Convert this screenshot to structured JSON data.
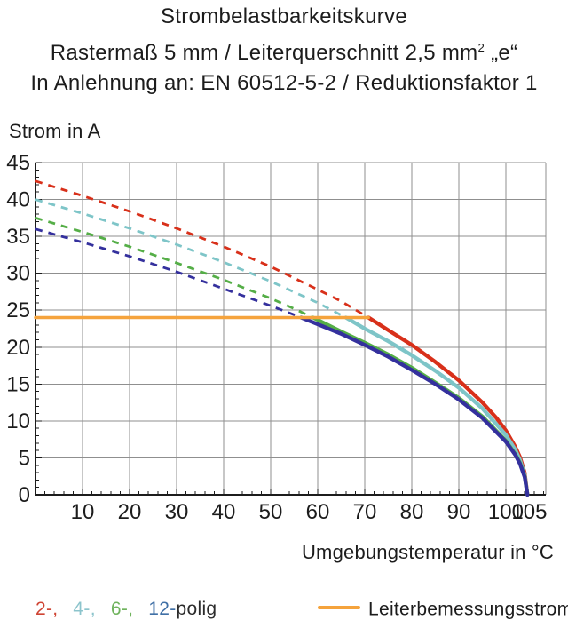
{
  "title": {
    "line1": "Strombelastbarkeitskurve",
    "line2_prefix": "Rastermaß 5 mm / Leiterquerschnitt 2,5 mm",
    "line2_sup": "2",
    "line2_suffix": " „e“",
    "line3": "In Anlehnung an: EN 60512-5-2 / Reduktionsfaktor 1"
  },
  "chart_data": {
    "type": "line",
    "title": "Strombelastbarkeitskurve",
    "xlabel": "Umgebungstemperatur in °C",
    "ylabel": "Strom in A",
    "xlim": [
      0,
      108.5
    ],
    "ylim": [
      0,
      45
    ],
    "x_major_ticks": [
      10,
      20,
      30,
      40,
      50,
      60,
      70,
      80,
      90,
      100,
      105
    ],
    "x_minor_step": 2,
    "x_minor_max": 108,
    "y_major_ticks": [
      0,
      5,
      10,
      15,
      20,
      25,
      30,
      35,
      40,
      45
    ],
    "y_minor_step": 1,
    "x_gridlines": [
      10,
      20,
      30,
      40,
      50,
      60,
      70,
      80,
      90,
      100,
      108.5
    ],
    "y_gridlines": [
      5,
      10,
      15,
      20,
      25,
      30,
      35,
      40,
      45
    ],
    "grid_on": true,
    "grid_color": "#8f8f8f",
    "axis_color": "#1c1c1c",
    "dashed_above_A": 24,
    "rated_current_line": {
      "label": "Leiterbemessungsstrom",
      "value_A": 24,
      "x_from": 0,
      "x_to": 70.8,
      "color": "#f5a33c"
    },
    "series": [
      {
        "name": "2-polig",
        "color": "#d8301a",
        "points": [
          [
            0,
            42.5
          ],
          [
            10,
            40.5
          ],
          [
            20,
            38.4
          ],
          [
            30,
            36.1
          ],
          [
            40,
            33.6
          ],
          [
            50,
            30.9
          ],
          [
            60,
            27.8
          ],
          [
            65,
            26.2
          ],
          [
            70,
            24.3
          ],
          [
            70.8,
            24
          ],
          [
            75,
            22.3
          ],
          [
            80,
            20.3
          ],
          [
            85,
            18.0
          ],
          [
            90,
            15.5
          ],
          [
            95,
            12.5
          ],
          [
            98,
            10.4
          ],
          [
            100,
            8.7
          ],
          [
            102,
            6.5
          ],
          [
            103,
            5.1
          ],
          [
            104,
            3.0
          ],
          [
            104.6,
            0
          ]
        ]
      },
      {
        "name": "4-polig",
        "color": "#7ec5c8",
        "points": [
          [
            0,
            40
          ],
          [
            10,
            38.1
          ],
          [
            20,
            36.1
          ],
          [
            30,
            33.9
          ],
          [
            40,
            31.5
          ],
          [
            50,
            28.9
          ],
          [
            60,
            26.0
          ],
          [
            66,
            24
          ],
          [
            70,
            22.5
          ],
          [
            75,
            20.8
          ],
          [
            80,
            18.9
          ],
          [
            85,
            16.8
          ],
          [
            90,
            14.5
          ],
          [
            95,
            11.7
          ],
          [
            100,
            8.1
          ],
          [
            102,
            6.1
          ],
          [
            103,
            4.7
          ],
          [
            104,
            2.7
          ],
          [
            104.6,
            0
          ]
        ]
      },
      {
        "name": "6-polig",
        "color": "#55ae47",
        "points": [
          [
            0,
            37.5
          ],
          [
            10,
            35.6
          ],
          [
            20,
            33.6
          ],
          [
            30,
            31.4
          ],
          [
            40,
            29.1
          ],
          [
            50,
            26.6
          ],
          [
            55,
            25.2
          ],
          [
            59,
            24
          ],
          [
            65,
            22.1
          ],
          [
            70,
            20.6
          ],
          [
            75,
            19.0
          ],
          [
            80,
            17.2
          ],
          [
            85,
            15.2
          ],
          [
            90,
            13.1
          ],
          [
            95,
            10.6
          ],
          [
            100,
            7.3
          ],
          [
            102,
            5.5
          ],
          [
            103,
            4.3
          ],
          [
            104,
            2.5
          ],
          [
            104.6,
            0
          ]
        ]
      },
      {
        "name": "12-polig",
        "color": "#34309d",
        "points": [
          [
            0,
            36
          ],
          [
            10,
            34.2
          ],
          [
            20,
            32.3
          ],
          [
            30,
            30.2
          ],
          [
            40,
            27.9
          ],
          [
            50,
            25.6
          ],
          [
            56.5,
            24
          ],
          [
            60,
            23.1
          ],
          [
            65,
            21.8
          ],
          [
            70,
            20.3
          ],
          [
            75,
            18.7
          ],
          [
            80,
            16.9
          ],
          [
            85,
            15.0
          ],
          [
            90,
            12.9
          ],
          [
            95,
            10.4
          ],
          [
            100,
            7.2
          ],
          [
            102,
            5.4
          ],
          [
            103,
            4.2
          ],
          [
            104,
            2.4
          ],
          [
            104.6,
            0
          ]
        ]
      }
    ]
  },
  "legend": {
    "poles": [
      {
        "label": "2-,",
        "color": "#cf4433"
      },
      {
        "label": "4-,",
        "color": "#8cc4cc"
      },
      {
        "label": "6-,",
        "color": "#6fb35d"
      },
      {
        "label": "12-",
        "color": "#4070a6"
      }
    ],
    "suffix": "polig",
    "suffix_color": "#2b2b2b",
    "line_label": "Leiterbemessungsstrom"
  }
}
